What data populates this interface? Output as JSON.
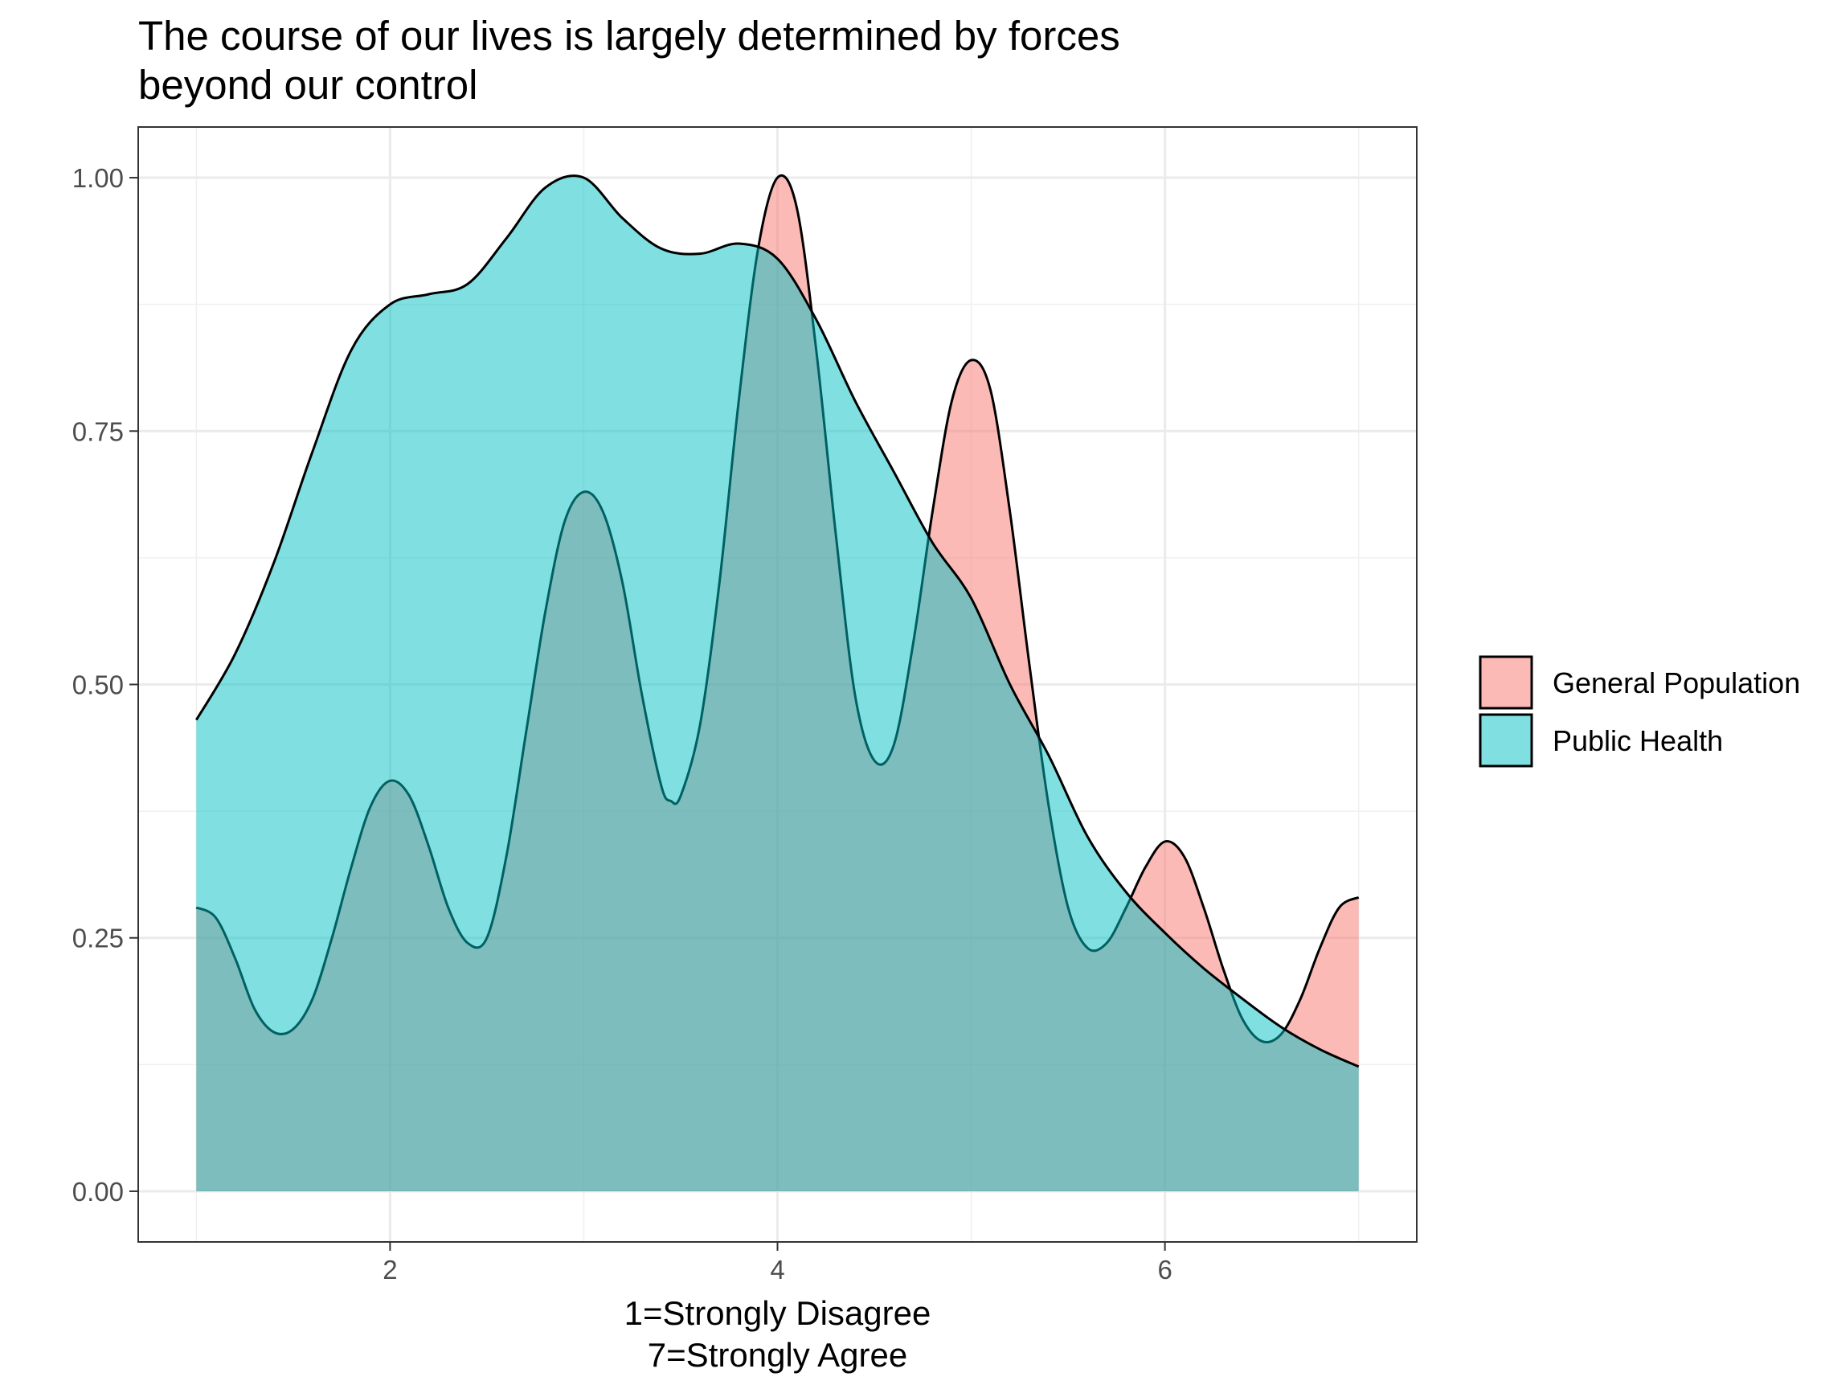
{
  "chart_data": {
    "type": "area",
    "title": "The course of our lives is largely determined by forces\nbeyond our control",
    "xlabel": "1=Strongly Disagree\n7=Strongly Agree",
    "ylabel": "",
    "xlim": [
      0.7,
      7.3
    ],
    "ylim": [
      -0.05,
      1.05
    ],
    "x_ticks": [
      2,
      4,
      6
    ],
    "x_tick_labels": [
      "2",
      "4",
      "6"
    ],
    "y_ticks": [
      0,
      0.25,
      0.5,
      0.75,
      1
    ],
    "y_tick_labels": [
      "0.00",
      "0.25",
      "0.50",
      "0.75",
      "1.00"
    ],
    "grid": true,
    "legend_position": "right",
    "series": [
      {
        "name": "General Population",
        "color": "#F8766D",
        "points": [
          [
            1.0,
            0.28
          ],
          [
            1.1,
            0.27
          ],
          [
            1.2,
            0.23
          ],
          [
            1.3,
            0.18
          ],
          [
            1.4,
            0.157
          ],
          [
            1.5,
            0.16
          ],
          [
            1.6,
            0.19
          ],
          [
            1.7,
            0.25
          ],
          [
            1.8,
            0.32
          ],
          [
            1.9,
            0.38
          ],
          [
            2.0,
            0.405
          ],
          [
            2.1,
            0.39
          ],
          [
            2.2,
            0.34
          ],
          [
            2.3,
            0.28
          ],
          [
            2.4,
            0.245
          ],
          [
            2.5,
            0.25
          ],
          [
            2.6,
            0.33
          ],
          [
            2.7,
            0.45
          ],
          [
            2.8,
            0.57
          ],
          [
            2.9,
            0.66
          ],
          [
            3.0,
            0.69
          ],
          [
            3.1,
            0.67
          ],
          [
            3.2,
            0.6
          ],
          [
            3.3,
            0.49
          ],
          [
            3.4,
            0.4
          ],
          [
            3.45,
            0.385
          ],
          [
            3.5,
            0.39
          ],
          [
            3.6,
            0.46
          ],
          [
            3.7,
            0.6
          ],
          [
            3.8,
            0.78
          ],
          [
            3.9,
            0.93
          ],
          [
            4.0,
            1.0
          ],
          [
            4.1,
            0.97
          ],
          [
            4.2,
            0.83
          ],
          [
            4.3,
            0.65
          ],
          [
            4.4,
            0.49
          ],
          [
            4.5,
            0.425
          ],
          [
            4.6,
            0.44
          ],
          [
            4.7,
            0.54
          ],
          [
            4.8,
            0.67
          ],
          [
            4.9,
            0.78
          ],
          [
            5.0,
            0.82
          ],
          [
            5.1,
            0.79
          ],
          [
            5.2,
            0.67
          ],
          [
            5.3,
            0.52
          ],
          [
            5.4,
            0.38
          ],
          [
            5.5,
            0.28
          ],
          [
            5.6,
            0.24
          ],
          [
            5.7,
            0.245
          ],
          [
            5.8,
            0.28
          ],
          [
            5.9,
            0.32
          ],
          [
            6.0,
            0.345
          ],
          [
            6.1,
            0.33
          ],
          [
            6.2,
            0.28
          ],
          [
            6.3,
            0.22
          ],
          [
            6.4,
            0.17
          ],
          [
            6.5,
            0.148
          ],
          [
            6.6,
            0.155
          ],
          [
            6.7,
            0.19
          ],
          [
            6.8,
            0.24
          ],
          [
            6.9,
            0.28
          ],
          [
            7.0,
            0.29
          ]
        ]
      },
      {
        "name": "Public Health",
        "color": "#00BFC4",
        "points": [
          [
            1.0,
            0.465
          ],
          [
            1.2,
            0.53
          ],
          [
            1.4,
            0.62
          ],
          [
            1.6,
            0.73
          ],
          [
            1.8,
            0.83
          ],
          [
            2.0,
            0.875
          ],
          [
            2.2,
            0.885
          ],
          [
            2.4,
            0.895
          ],
          [
            2.6,
            0.94
          ],
          [
            2.8,
            0.99
          ],
          [
            3.0,
            1.0
          ],
          [
            3.2,
            0.96
          ],
          [
            3.4,
            0.93
          ],
          [
            3.6,
            0.925
          ],
          [
            3.8,
            0.935
          ],
          [
            4.0,
            0.92
          ],
          [
            4.2,
            0.86
          ],
          [
            4.4,
            0.78
          ],
          [
            4.6,
            0.71
          ],
          [
            4.8,
            0.64
          ],
          [
            5.0,
            0.585
          ],
          [
            5.2,
            0.5
          ],
          [
            5.4,
            0.43
          ],
          [
            5.6,
            0.35
          ],
          [
            5.8,
            0.295
          ],
          [
            6.0,
            0.255
          ],
          [
            6.2,
            0.22
          ],
          [
            6.4,
            0.19
          ],
          [
            6.6,
            0.162
          ],
          [
            6.8,
            0.14
          ],
          [
            7.0,
            0.123
          ]
        ]
      }
    ]
  },
  "legend": {
    "items": [
      {
        "label": "General Population",
        "fill": "#F8766D"
      },
      {
        "label": "Public Health",
        "fill": "#00BFC4"
      }
    ]
  }
}
